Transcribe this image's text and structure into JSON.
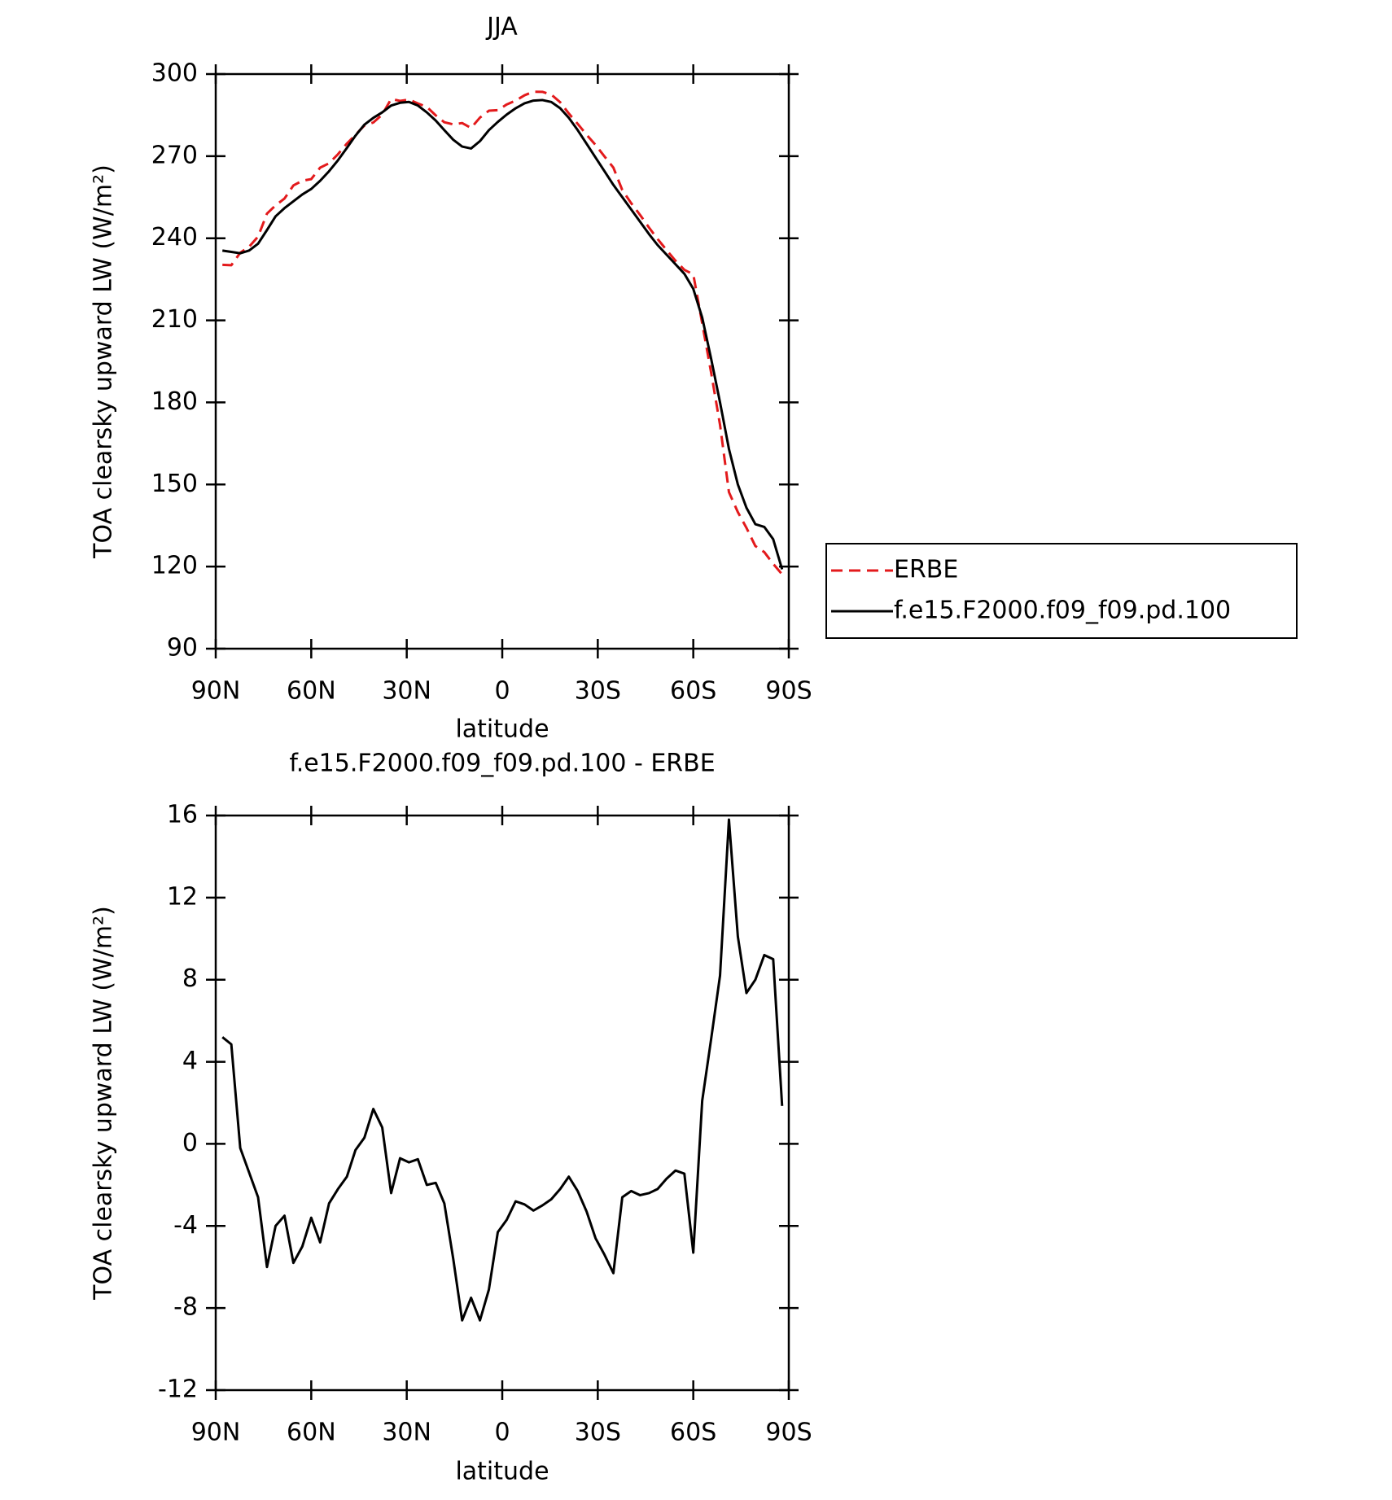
{
  "chart_data": [
    {
      "type": "line",
      "title": "JJA",
      "xlabel": "latitude",
      "ylabel": "TOA clearsky upward LW (W/m²)",
      "x": [
        87.9,
        85.1,
        82.3,
        79.5,
        76.7,
        73.9,
        71.2,
        68.4,
        65.6,
        62.8,
        60.0,
        57.2,
        54.4,
        51.6,
        48.8,
        46.1,
        43.3,
        40.5,
        37.7,
        34.9,
        32.1,
        29.3,
        26.5,
        23.7,
        20.9,
        18.2,
        15.4,
        12.6,
        9.8,
        7.0,
        4.2,
        1.4,
        -1.4,
        -4.2,
        -7.0,
        -9.8,
        -12.6,
        -15.4,
        -18.2,
        -20.9,
        -23.7,
        -26.5,
        -29.3,
        -32.1,
        -34.9,
        -37.7,
        -40.5,
        -43.3,
        -46.1,
        -48.8,
        -51.6,
        -54.4,
        -57.2,
        -60.0,
        -62.8,
        -65.6,
        -68.4,
        -71.2,
        -74.0,
        -76.7,
        -79.5,
        -82.3,
        -85.1,
        -87.9
      ],
      "series": [
        {
          "name": "ERBE",
          "color": "#e31a1c",
          "dashed": true,
          "values": [
            230.3,
            230.15,
            234.7,
            236.9,
            240.6,
            249,
            252,
            254.5,
            259.3,
            261,
            261.6,
            265.8,
            267.4,
            270.7,
            274.6,
            277.8,
            281.2,
            282.3,
            285.2,
            290.9,
            290.2,
            290.7,
            289.25,
            288,
            284.9,
            282.4,
            281.6,
            282.1,
            280.3,
            284.1,
            286.6,
            286.8,
            288.9,
            290.3,
            292.25,
            293.55,
            293.5,
            292.5,
            289.7,
            285.6,
            281.8,
            277.8,
            274.1,
            269.9,
            265.8,
            257.6,
            252.8,
            248.5,
            243.9,
            239.7,
            235.7,
            231.8,
            228.45,
            226.8,
            208.9,
            190.9,
            171.8,
            147.2,
            139.9,
            134.15,
            127.5,
            125.3,
            121,
            117.15
          ]
        },
        {
          "name": "f.e15.F2000.f09_f09.pd.100",
          "color": "#000000",
          "dashed": false,
          "values": [
            235.5,
            235,
            234.5,
            235.5,
            238,
            243,
            248,
            251,
            253.5,
            256,
            258,
            261,
            264.5,
            268.5,
            273,
            277.5,
            281.5,
            284,
            286,
            288.5,
            289.5,
            289.8,
            288.5,
            286,
            283,
            279.5,
            276,
            273.5,
            272.8,
            275.5,
            279.5,
            282.5,
            285.2,
            287.5,
            289.3,
            290.3,
            290.5,
            289.8,
            287.5,
            284,
            279.5,
            274.5,
            269.5,
            264.5,
            259.5,
            255,
            250.5,
            246,
            241.5,
            237.5,
            234,
            230.5,
            227,
            221.5,
            211,
            196,
            180,
            163,
            150,
            141.5,
            135.5,
            134.5,
            130,
            119
          ]
        }
      ],
      "xlim": [
        90,
        -90
      ],
      "xticks": [
        {
          "value": 90,
          "label": "90N"
        },
        {
          "value": 60,
          "label": "60N"
        },
        {
          "value": 30,
          "label": "30N"
        },
        0,
        {
          "value": -30,
          "label": "30S"
        },
        {
          "value": -60,
          "label": "60S"
        },
        {
          "value": -90,
          "label": "90S"
        }
      ],
      "ylim": [
        90,
        300
      ],
      "yticks": [
        90,
        120,
        150,
        180,
        210,
        240,
        270,
        300
      ],
      "legend": "right"
    },
    {
      "type": "line",
      "title": "f.e15.F2000.f09_f09.pd.100 - ERBE",
      "xlabel": "latitude",
      "ylabel": "TOA clearsky upward LW (W/m²)",
      "x": [
        87.9,
        85.1,
        82.3,
        79.5,
        76.7,
        73.9,
        71.2,
        68.4,
        65.6,
        62.8,
        60.0,
        57.2,
        54.4,
        51.6,
        48.8,
        46.1,
        43.3,
        40.5,
        37.7,
        34.9,
        32.1,
        29.3,
        26.5,
        23.7,
        20.9,
        18.2,
        15.4,
        12.6,
        9.8,
        7.0,
        4.2,
        1.4,
        -1.4,
        -4.2,
        -7.0,
        -9.8,
        -12.6,
        -15.4,
        -18.2,
        -20.9,
        -23.7,
        -26.5,
        -29.3,
        -32.1,
        -34.9,
        -37.7,
        -40.5,
        -43.3,
        -46.1,
        -48.8,
        -51.6,
        -54.4,
        -57.2,
        -60.0,
        -62.8,
        -65.6,
        -68.4,
        -71.2,
        -74.0,
        -76.7,
        -79.5,
        -82.3,
        -85.1,
        -87.9
      ],
      "series": [
        {
          "color": "#000000",
          "dashed": false,
          "values": [
            5.2,
            4.85,
            -0.2,
            -1.4,
            -2.6,
            -6.0,
            -4.0,
            -3.5,
            -5.8,
            -5.0,
            -3.6,
            -4.8,
            -2.9,
            -2.2,
            -1.6,
            -0.3,
            0.3,
            1.7,
            0.8,
            -2.4,
            -0.7,
            -0.9,
            -0.75,
            -2.0,
            -1.9,
            -2.9,
            -5.6,
            -8.6,
            -7.5,
            -8.6,
            -7.1,
            -4.3,
            -3.7,
            -2.8,
            -2.95,
            -3.25,
            -3.0,
            -2.7,
            -2.2,
            -1.6,
            -2.3,
            -3.3,
            -4.6,
            -5.4,
            -6.3,
            -2.6,
            -2.3,
            -2.5,
            -2.4,
            -2.2,
            -1.7,
            -1.3,
            -1.45,
            -5.3,
            2.1,
            5.1,
            8.2,
            15.8,
            10.1,
            7.35,
            8.0,
            9.2,
            9.0,
            1.85
          ]
        }
      ],
      "xlim": [
        90,
        -90
      ],
      "xticks": [
        {
          "value": 90,
          "label": "90N"
        },
        {
          "value": 60,
          "label": "60N"
        },
        {
          "value": 30,
          "label": "30N"
        },
        0,
        {
          "value": -30,
          "label": "30S"
        },
        {
          "value": -60,
          "label": "60S"
        },
        {
          "value": -90,
          "label": "90S"
        }
      ],
      "ylim": [
        -12,
        16
      ],
      "yticks": [
        -12,
        -8,
        -4,
        0,
        4,
        8,
        12,
        16
      ]
    }
  ]
}
